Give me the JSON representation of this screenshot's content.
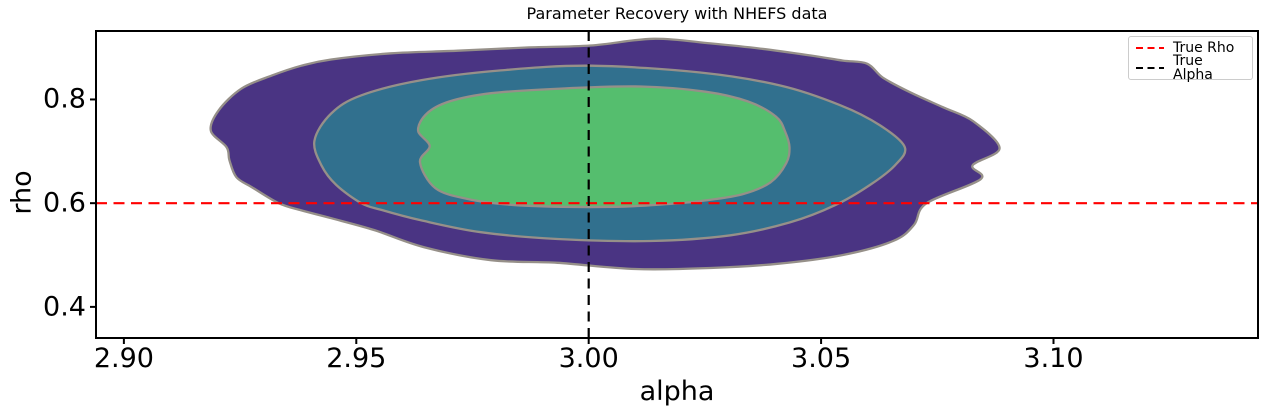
{
  "chart_data": {
    "type": "contour",
    "title": "Parameter Recovery with NHEFS data",
    "xlabel": "alpha",
    "ylabel": "rho",
    "xlim": [
      2.894,
      3.144
    ],
    "ylim": [
      0.34,
      0.932
    ],
    "xticks": [
      {
        "value": 2.9,
        "label": "2.90"
      },
      {
        "value": 2.95,
        "label": "2.95"
      },
      {
        "value": 3.0,
        "label": "3.00"
      },
      {
        "value": 3.05,
        "label": "3.05"
      },
      {
        "value": 3.1,
        "label": "3.10"
      }
    ],
    "yticks": [
      {
        "value": 0.4,
        "label": "0.4"
      },
      {
        "value": 0.6,
        "label": "0.6"
      },
      {
        "value": 0.8,
        "label": "0.8"
      }
    ],
    "grid": false,
    "legend_position": "upper right",
    "reference_lines": [
      {
        "name": "true_rho",
        "orientation": "horizontal",
        "value": 0.6,
        "color": "#ff0000",
        "style": "dashed"
      },
      {
        "name": "true_alpha",
        "orientation": "vertical",
        "value": 3.0,
        "color": "#000000",
        "style": "dashed"
      }
    ],
    "contour_edge_color": "#969089",
    "contours": [
      {
        "level": "outer",
        "fill": "#4a3483",
        "points": [
          [
            2.9187,
            0.74
          ],
          [
            2.9204,
            0.779
          ],
          [
            2.9253,
            0.821
          ],
          [
            2.9318,
            0.846
          ],
          [
            2.9382,
            0.865
          ],
          [
            2.9446,
            0.877
          ],
          [
            2.9575,
            0.889
          ],
          [
            2.9719,
            0.894
          ],
          [
            2.9861,
            0.9
          ],
          [
            3.0004,
            0.904
          ],
          [
            3.0139,
            0.917
          ],
          [
            3.0262,
            0.908
          ],
          [
            3.0369,
            0.898
          ],
          [
            3.0476,
            0.885
          ],
          [
            3.0547,
            0.875
          ],
          [
            3.0599,
            0.869
          ],
          [
            3.0633,
            0.842
          ],
          [
            3.0691,
            0.814
          ],
          [
            3.0762,
            0.785
          ],
          [
            3.0827,
            0.758
          ],
          [
            3.0884,
            0.706
          ],
          [
            3.0826,
            0.673
          ],
          [
            3.0843,
            0.646
          ],
          [
            3.0727,
            0.6
          ],
          [
            3.07,
            0.558
          ],
          [
            3.0655,
            0.527
          ],
          [
            3.0547,
            0.5
          ],
          [
            3.0406,
            0.483
          ],
          [
            3.0262,
            0.475
          ],
          [
            3.01,
            0.473
          ],
          [
            2.9933,
            0.485
          ],
          [
            2.979,
            0.49
          ],
          [
            2.9646,
            0.515
          ],
          [
            2.9539,
            0.548
          ],
          [
            2.9446,
            0.571
          ],
          [
            2.9382,
            0.586
          ],
          [
            2.9333,
            0.6
          ],
          [
            2.9275,
            0.631
          ],
          [
            2.9242,
            0.65
          ],
          [
            2.9227,
            0.683
          ],
          [
            2.9221,
            0.708
          ]
        ]
      },
      {
        "level": "middle",
        "fill": "#31708e",
        "points": [
          [
            2.941,
            0.721
          ],
          [
            2.9446,
            0.773
          ],
          [
            2.9511,
            0.808
          ],
          [
            2.9639,
            0.837
          ],
          [
            2.9811,
            0.856
          ],
          [
            3.0004,
            0.865
          ],
          [
            3.024,
            0.852
          ],
          [
            3.0412,
            0.827
          ],
          [
            3.0541,
            0.789
          ],
          [
            3.0627,
            0.75
          ],
          [
            3.068,
            0.708
          ],
          [
            3.0659,
            0.673
          ],
          [
            3.0605,
            0.635
          ],
          [
            3.053,
            0.596
          ],
          [
            3.0433,
            0.563
          ],
          [
            3.0305,
            0.538
          ],
          [
            3.0133,
            0.527
          ],
          [
            2.9933,
            0.531
          ],
          [
            2.9768,
            0.544
          ],
          [
            2.9639,
            0.567
          ],
          [
            2.9554,
            0.587
          ],
          [
            2.9511,
            0.6
          ],
          [
            2.9457,
            0.635
          ],
          [
            2.9425,
            0.673
          ]
        ]
      },
      {
        "level": "inner",
        "fill": "#55be6e",
        "points": [
          [
            2.9633,
            0.74
          ],
          [
            2.9652,
            0.773
          ],
          [
            2.97,
            0.796
          ],
          [
            2.979,
            0.812
          ],
          [
            2.994,
            0.821
          ],
          [
            3.0112,
            0.825
          ],
          [
            3.0251,
            0.815
          ],
          [
            3.0343,
            0.796
          ],
          [
            3.0403,
            0.767
          ],
          [
            3.0423,
            0.737
          ],
          [
            3.0432,
            0.708
          ],
          [
            3.0425,
            0.677
          ],
          [
            3.0391,
            0.64
          ],
          [
            3.033,
            0.617
          ],
          [
            3.024,
            0.604
          ],
          [
            3.015,
            0.597
          ],
          [
            3.006,
            0.593
          ],
          [
            2.994,
            0.593
          ],
          [
            2.983,
            0.597
          ],
          [
            2.974,
            0.608
          ],
          [
            2.967,
            0.629
          ],
          [
            2.9637,
            0.679
          ],
          [
            2.9658,
            0.71
          ]
        ]
      }
    ]
  },
  "legend": {
    "items": [
      {
        "label": "True Rho",
        "color": "#ff0000"
      },
      {
        "label": "True Alpha",
        "color": "#000000"
      }
    ]
  }
}
